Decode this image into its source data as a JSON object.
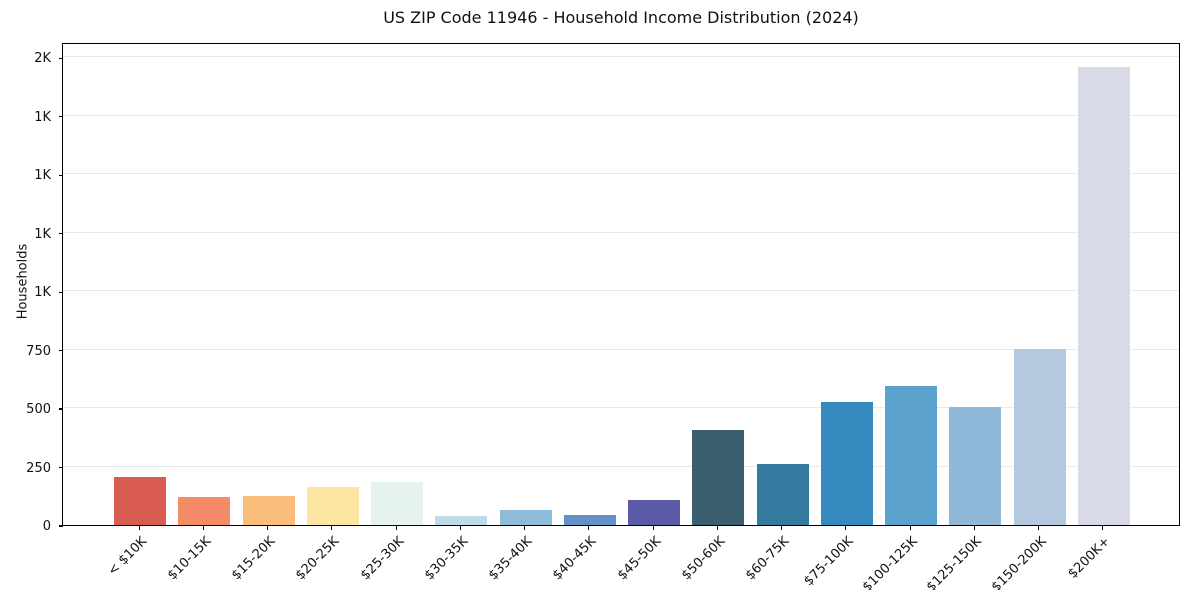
{
  "chart_data": {
    "type": "bar",
    "title": "US ZIP Code 11946 - Household Income Distribution (2024)",
    "xlabel": "",
    "ylabel": "Households",
    "categories": [
      "< $10K",
      "$10-15K",
      "$15-20K",
      "$20-25K",
      "$25-30K",
      "$30-35K",
      "$35-40K",
      "$40-45K",
      "$45-50K",
      "$50-60K",
      "$60-75K",
      "$75-100K",
      "$100-125K",
      "$125-150K",
      "$150-200K",
      "$200K+"
    ],
    "values": [
      205,
      118,
      124,
      164,
      186,
      39,
      63,
      42,
      106,
      405,
      263,
      525,
      594,
      504,
      753,
      1958
    ],
    "bar_colors": [
      "#d85c52",
      "#f58a66",
      "#fbbd7b",
      "#fde5a3",
      "#e6f2ef",
      "#bcdcea",
      "#8fbbda",
      "#6292c7",
      "#5a5aa8",
      "#3a5f6f",
      "#35799f",
      "#348abd",
      "#5ba3cd",
      "#8fb8d9",
      "#b4c8e0",
      "#d8dae8"
    ],
    "ylim": [
      0,
      2065
    ],
    "yticks": [
      {
        "value": 0,
        "label": "0"
      },
      {
        "value": 250,
        "label": "250"
      },
      {
        "value": 500,
        "label": "500"
      },
      {
        "value": 750,
        "label": "750"
      },
      {
        "value": 1000,
        "label": "1K"
      },
      {
        "value": 1250,
        "label": "1K"
      },
      {
        "value": 1500,
        "label": "1K"
      },
      {
        "value": 1750,
        "label": "1K"
      },
      {
        "value": 2000,
        "label": "2K"
      }
    ],
    "grid": "horizontal",
    "grid_color": "#e9e9e9",
    "legend": "none"
  }
}
